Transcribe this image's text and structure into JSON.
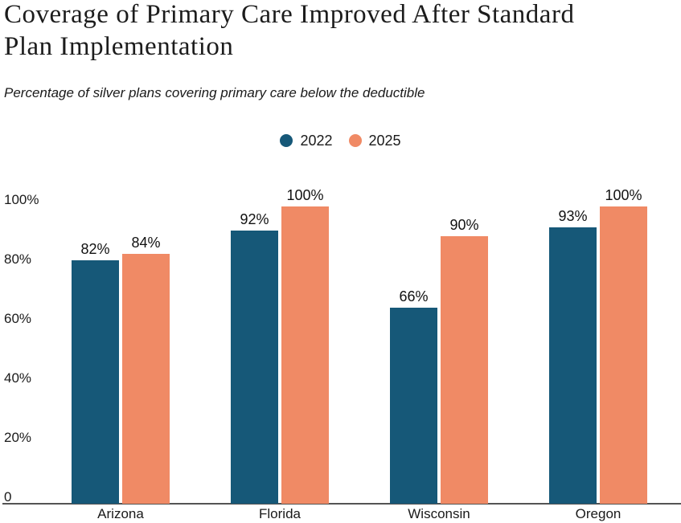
{
  "header": {
    "title_lines": [
      "Coverage of Primary Care Improved After Standard",
      "Plan Implementation"
    ],
    "subtitle": "Percentage of silver plans covering primary care below the deductible"
  },
  "chart_data": {
    "type": "bar",
    "title": "Coverage of Primary Care Improved After Standard Plan Implementation",
    "subtitle": "Percentage of silver plans covering primary care below the deductible",
    "categories": [
      "Arizona",
      "Florida",
      "Wisconsin",
      "Oregon"
    ],
    "series": [
      {
        "name": "2022",
        "color": "#165878",
        "values": [
          82,
          92,
          66,
          93
        ]
      },
      {
        "name": "2025",
        "color": "#F08A65",
        "values": [
          84,
          100,
          90,
          100
        ]
      }
    ],
    "data_labels": true,
    "data_label_suffix": "%",
    "y_ticks": [
      {
        "value": 0,
        "label": "0"
      },
      {
        "value": 20,
        "label": "20%"
      },
      {
        "value": 40,
        "label": "40%"
      },
      {
        "value": 60,
        "label": "60%"
      },
      {
        "value": 80,
        "label": "80%"
      },
      {
        "value": 100,
        "label": "100%"
      }
    ],
    "ylim": [
      0,
      100
    ],
    "grid": false,
    "legend_position": "top-center",
    "axis_line_color": "#545454",
    "text_color": "#1a1a1a"
  }
}
